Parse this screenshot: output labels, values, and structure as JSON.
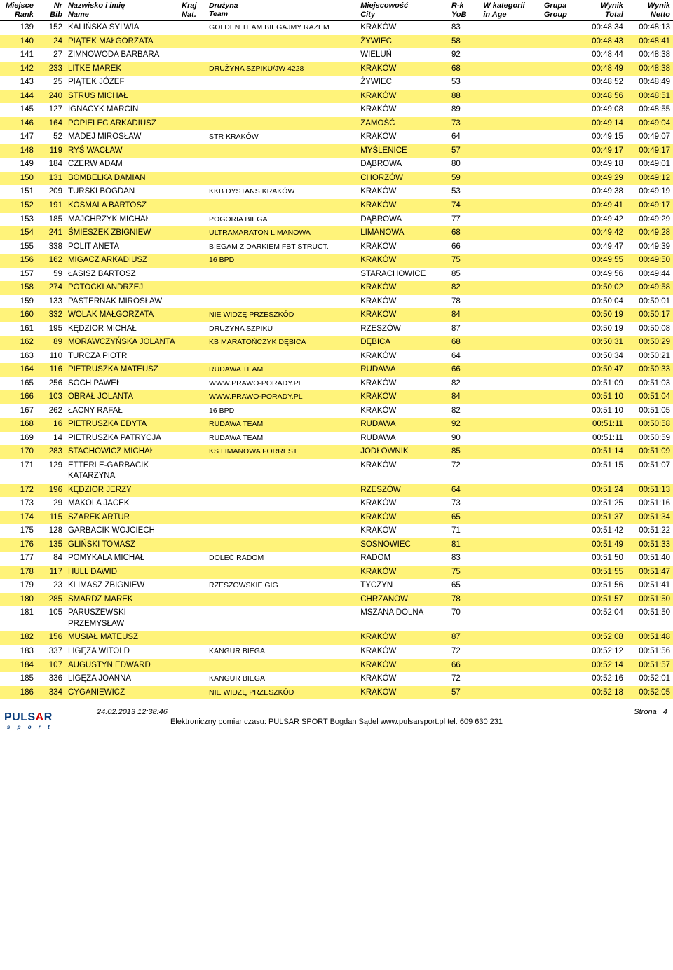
{
  "headers": {
    "rank": {
      "l1": "Miejsce",
      "l2": "Rank"
    },
    "bib": {
      "l1": "Nr",
      "l2": "Bib"
    },
    "name": {
      "l1": "Nazwisko i imię",
      "l2": "Name"
    },
    "nat": {
      "l1": "Kraj",
      "l2": "Nat."
    },
    "team": {
      "l1": "Drużyna",
      "l2": "Team"
    },
    "city": {
      "l1": "Miejscowość",
      "l2": "City"
    },
    "yob": {
      "l1": "R-k",
      "l2": "YoB"
    },
    "age": {
      "l1": "W kategorii",
      "l2": "in Age"
    },
    "group": {
      "l1": "Grupa",
      "l2": "Group"
    },
    "total": {
      "l1": "Wynik",
      "l2": "Total"
    },
    "netto": {
      "l1": "Wynik",
      "l2": "Netto"
    }
  },
  "rows": [
    {
      "rank": "139",
      "bib": "152",
      "name": "KALIŃSKA SYLWIA",
      "team": "GOLDEN TEAM BIEGAJMY RAZEM",
      "city": "KRAKÓW",
      "yob": "83",
      "total": "00:48:34",
      "netto": "00:48:13",
      "hl": false
    },
    {
      "rank": "140",
      "bib": "24",
      "name": "PIĄTEK MAŁGORZATA",
      "team": "",
      "city": "ŻYWIEC",
      "yob": "58",
      "total": "00:48:43",
      "netto": "00:48:41",
      "hl": true
    },
    {
      "rank": "141",
      "bib": "27",
      "name": "ZIMNOWODA BARBARA",
      "team": "",
      "city": "WIELUŃ",
      "yob": "92",
      "total": "00:48:44",
      "netto": "00:48:38",
      "hl": false
    },
    {
      "rank": "142",
      "bib": "233",
      "name": "LITKE MAREK",
      "team": "DRUŻYNA SZPIKU/JW 4228",
      "city": "KRAKÓW",
      "yob": "68",
      "total": "00:48:49",
      "netto": "00:48:38",
      "hl": true
    },
    {
      "rank": "143",
      "bib": "25",
      "name": "PIĄTEK JÓZEF",
      "team": "",
      "city": "ŻYWIEC",
      "yob": "53",
      "total": "00:48:52",
      "netto": "00:48:49",
      "hl": false
    },
    {
      "rank": "144",
      "bib": "240",
      "name": "STRUS MICHAŁ",
      "team": "",
      "city": "KRAKÓW",
      "yob": "88",
      "total": "00:48:56",
      "netto": "00:48:51",
      "hl": true
    },
    {
      "rank": "145",
      "bib": "127",
      "name": "IGNACYK MARCIN",
      "team": "",
      "city": "KRAKÓW",
      "yob": "89",
      "total": "00:49:08",
      "netto": "00:48:55",
      "hl": false
    },
    {
      "rank": "146",
      "bib": "164",
      "name": "POPIELEC ARKADIUSZ",
      "team": "",
      "city": "ZAMOŚĆ",
      "yob": "73",
      "total": "00:49:14",
      "netto": "00:49:04",
      "hl": true
    },
    {
      "rank": "147",
      "bib": "52",
      "name": "MADEJ MIROSŁAW",
      "team": "STR KRAKÓW",
      "city": "KRAKÓW",
      "yob": "64",
      "total": "00:49:15",
      "netto": "00:49:07",
      "hl": false
    },
    {
      "rank": "148",
      "bib": "119",
      "name": "RYŚ WACŁAW",
      "team": "",
      "city": "MYŚLENICE",
      "yob": "57",
      "total": "00:49:17",
      "netto": "00:49:17",
      "hl": true
    },
    {
      "rank": "149",
      "bib": "184",
      "name": "CZERW ADAM",
      "team": "",
      "city": "DĄBROWA",
      "yob": "80",
      "total": "00:49:18",
      "netto": "00:49:01",
      "hl": false
    },
    {
      "rank": "150",
      "bib": "131",
      "name": "BOMBELKA DAMIAN",
      "team": "",
      "city": "CHORZÓW",
      "yob": "59",
      "total": "00:49:29",
      "netto": "00:49:12",
      "hl": true
    },
    {
      "rank": "151",
      "bib": "209",
      "name": "TURSKI BOGDAN",
      "team": "KKB DYSTANS KRAKÓW",
      "city": "KRAKÓW",
      "yob": "53",
      "total": "00:49:38",
      "netto": "00:49:19",
      "hl": false
    },
    {
      "rank": "152",
      "bib": "191",
      "name": "KOSMALA BARTOSZ",
      "team": "",
      "city": "KRAKÓW",
      "yob": "74",
      "total": "00:49:41",
      "netto": "00:49:17",
      "hl": true
    },
    {
      "rank": "153",
      "bib": "185",
      "name": "MAJCHRZYK MICHAŁ",
      "team": "POGORIA BIEGA",
      "city": "DĄBROWA",
      "yob": "77",
      "total": "00:49:42",
      "netto": "00:49:29",
      "hl": false
    },
    {
      "rank": "154",
      "bib": "241",
      "name": "ŚMIESZEK ZBIGNIEW",
      "team": "ULTRAMARATON LIMANOWA",
      "city": "LIMANOWA",
      "yob": "68",
      "total": "00:49:42",
      "netto": "00:49:28",
      "hl": true
    },
    {
      "rank": "155",
      "bib": "338",
      "name": "POLIT ANETA",
      "team": "BIEGAM Z DARKIEM FBT STRUCT.",
      "city": "KRAKÓW",
      "yob": "66",
      "total": "00:49:47",
      "netto": "00:49:39",
      "hl": false
    },
    {
      "rank": "156",
      "bib": "162",
      "name": "MIGACZ ARKADIUSZ",
      "team": "16 BPD",
      "city": "KRAKÓW",
      "yob": "75",
      "total": "00:49:55",
      "netto": "00:49:50",
      "hl": true
    },
    {
      "rank": "157",
      "bib": "59",
      "name": "ŁASISZ BARTOSZ",
      "team": "",
      "city": "STARACHOWICE",
      "yob": "85",
      "total": "00:49:56",
      "netto": "00:49:44",
      "hl": false
    },
    {
      "rank": "158",
      "bib": "274",
      "name": "POTOCKI ANDRZEJ",
      "team": "",
      "city": "KRAKÓW",
      "yob": "82",
      "total": "00:50:02",
      "netto": "00:49:58",
      "hl": true
    },
    {
      "rank": "159",
      "bib": "133",
      "name": "PASTERNAK MIROSŁAW",
      "team": "",
      "city": "KRAKÓW",
      "yob": "78",
      "total": "00:50:04",
      "netto": "00:50:01",
      "hl": false
    },
    {
      "rank": "160",
      "bib": "332",
      "name": "WOLAK MAŁGORZATA",
      "team": "NIE WIDZĘ PRZESZKÓD",
      "city": "KRAKÓW",
      "yob": "84",
      "total": "00:50:19",
      "netto": "00:50:17",
      "hl": true
    },
    {
      "rank": "161",
      "bib": "195",
      "name": "KĘDZIOR MICHAŁ",
      "team": "DRUŻYNA SZPIKU",
      "city": "RZESZÓW",
      "yob": "87",
      "total": "00:50:19",
      "netto": "00:50:08",
      "hl": false
    },
    {
      "rank": "162",
      "bib": "89",
      "name": "MORAWCZYŃSKA JOLANTA",
      "team": "KB MARATOŃCZYK DĘBICA",
      "city": "DĘBICA",
      "yob": "68",
      "total": "00:50:31",
      "netto": "00:50:29",
      "hl": true
    },
    {
      "rank": "163",
      "bib": "110",
      "name": "TURCZA PIOTR",
      "team": "",
      "city": "KRAKÓW",
      "yob": "64",
      "total": "00:50:34",
      "netto": "00:50:21",
      "hl": false
    },
    {
      "rank": "164",
      "bib": "116",
      "name": "PIETRUSZKA MATEUSZ",
      "team": "RUDAWA TEAM",
      "city": "RUDAWA",
      "yob": "66",
      "total": "00:50:47",
      "netto": "00:50:33",
      "hl": true
    },
    {
      "rank": "165",
      "bib": "256",
      "name": "SOCH PAWEŁ",
      "team": "WWW.PRAWO-PORADY.PL",
      "city": "KRAKÓW",
      "yob": "82",
      "total": "00:51:09",
      "netto": "00:51:03",
      "hl": false
    },
    {
      "rank": "166",
      "bib": "103",
      "name": "OBRAŁ JOLANTA",
      "team": "WWW.PRAWO-PORADY.PL",
      "city": "KRAKÓW",
      "yob": "84",
      "total": "00:51:10",
      "netto": "00:51:04",
      "hl": true
    },
    {
      "rank": "167",
      "bib": "262",
      "name": "ŁACNY RAFAŁ",
      "team": "16 BPD",
      "city": "KRAKÓW",
      "yob": "82",
      "total": "00:51:10",
      "netto": "00:51:05",
      "hl": false
    },
    {
      "rank": "168",
      "bib": "16",
      "name": "PIETRUSZKA EDYTA",
      "team": "RUDAWA TEAM",
      "city": "RUDAWA",
      "yob": "92",
      "total": "00:51:11",
      "netto": "00:50:58",
      "hl": true
    },
    {
      "rank": "169",
      "bib": "14",
      "name": "PIETRUSZKA PATRYCJA",
      "team": "RUDAWA TEAM",
      "city": "RUDAWA",
      "yob": "90",
      "total": "00:51:11",
      "netto": "00:50:59",
      "hl": false
    },
    {
      "rank": "170",
      "bib": "283",
      "name": "STACHOWICZ MICHAŁ",
      "team": "KS LIMANOWA FORREST",
      "city": "JODŁOWNIK",
      "yob": "85",
      "total": "00:51:14",
      "netto": "00:51:09",
      "hl": true
    },
    {
      "rank": "171",
      "bib": "129",
      "name": "ETTERLE-GARBACIK KATARZYNA",
      "team": "",
      "city": "KRAKÓW",
      "yob": "72",
      "total": "00:51:15",
      "netto": "00:51:07",
      "hl": false
    },
    {
      "rank": "172",
      "bib": "196",
      "name": "KĘDZIOR JERZY",
      "team": "",
      "city": "RZESZÓW",
      "yob": "64",
      "total": "00:51:24",
      "netto": "00:51:13",
      "hl": true
    },
    {
      "rank": "173",
      "bib": "29",
      "name": "MAKOLA JACEK",
      "team": "",
      "city": "KRAKÓW",
      "yob": "73",
      "total": "00:51:25",
      "netto": "00:51:16",
      "hl": false
    },
    {
      "rank": "174",
      "bib": "115",
      "name": "SZAREK ARTUR",
      "team": "",
      "city": "KRAKÓW",
      "yob": "65",
      "total": "00:51:37",
      "netto": "00:51:34",
      "hl": true
    },
    {
      "rank": "175",
      "bib": "128",
      "name": "GARBACIK WOJCIECH",
      "team": "",
      "city": "KRAKÓW",
      "yob": "71",
      "total": "00:51:42",
      "netto": "00:51:22",
      "hl": false
    },
    {
      "rank": "176",
      "bib": "135",
      "name": "GLIŃSKI TOMASZ",
      "team": "",
      "city": "SOSNOWIEC",
      "yob": "81",
      "total": "00:51:49",
      "netto": "00:51:33",
      "hl": true
    },
    {
      "rank": "177",
      "bib": "84",
      "name": "POMYKALA MICHAŁ",
      "team": "DOLEĆ RADOM",
      "city": "RADOM",
      "yob": "83",
      "total": "00:51:50",
      "netto": "00:51:40",
      "hl": false
    },
    {
      "rank": "178",
      "bib": "117",
      "name": "HULL DAWID",
      "team": "",
      "city": "KRAKÓW",
      "yob": "75",
      "total": "00:51:55",
      "netto": "00:51:47",
      "hl": true
    },
    {
      "rank": "179",
      "bib": "23",
      "name": "KLIMASZ ZBIGNIEW",
      "team": "RZESZOWSKIE GIG",
      "city": "TYCZYN",
      "yob": "65",
      "total": "00:51:56",
      "netto": "00:51:41",
      "hl": false
    },
    {
      "rank": "180",
      "bib": "285",
      "name": "SMARDZ MAREK",
      "team": "",
      "city": "CHRZANÓW",
      "yob": "78",
      "total": "00:51:57",
      "netto": "00:51:50",
      "hl": true
    },
    {
      "rank": "181",
      "bib": "105",
      "name": "PARUSZEWSKI PRZEMYSŁAW",
      "team": "",
      "city": "MSZANA DOLNA",
      "yob": "70",
      "total": "00:52:04",
      "netto": "00:51:50",
      "hl": false
    },
    {
      "rank": "182",
      "bib": "156",
      "name": "MUSIAŁ MATEUSZ",
      "team": "",
      "city": "KRAKÓW",
      "yob": "87",
      "total": "00:52:08",
      "netto": "00:51:48",
      "hl": true
    },
    {
      "rank": "183",
      "bib": "337",
      "name": "LIGĘZA WITOLD",
      "team": "KANGUR BIEGA",
      "city": "KRAKÓW",
      "yob": "72",
      "total": "00:52:12",
      "netto": "00:51:56",
      "hl": false
    },
    {
      "rank": "184",
      "bib": "107",
      "name": "AUGUSTYN EDWARD",
      "team": "",
      "city": "KRAKÓW",
      "yob": "66",
      "total": "00:52:14",
      "netto": "00:51:57",
      "hl": true
    },
    {
      "rank": "185",
      "bib": "336",
      "name": "LIGĘZA JOANNA",
      "team": "KANGUR BIEGA",
      "city": "KRAKÓW",
      "yob": "72",
      "total": "00:52:16",
      "netto": "00:52:01",
      "hl": false
    },
    {
      "rank": "186",
      "bib": "334",
      "name": "CYGANIEWICZ",
      "team": "NIE WIDZĘ PRZESZKÓD",
      "city": "KRAKÓW",
      "yob": "57",
      "total": "00:52:18",
      "netto": "00:52:05",
      "hl": true
    }
  ],
  "footer": {
    "timestamp": "24.02.2013 12:38:46",
    "page_label": "Strona",
    "page_number": "4",
    "credit": "Elektroniczny pomiar czasu: PULSAR SPORT Bogdan Sądel www.pulsarsport.pl tel. 609 630 231",
    "logo_text": "PULSAR",
    "logo_sub": "s p o r t"
  },
  "style": {
    "highlight_color": "#fff37a",
    "text_color": "#000000",
    "background": "#ffffff"
  }
}
